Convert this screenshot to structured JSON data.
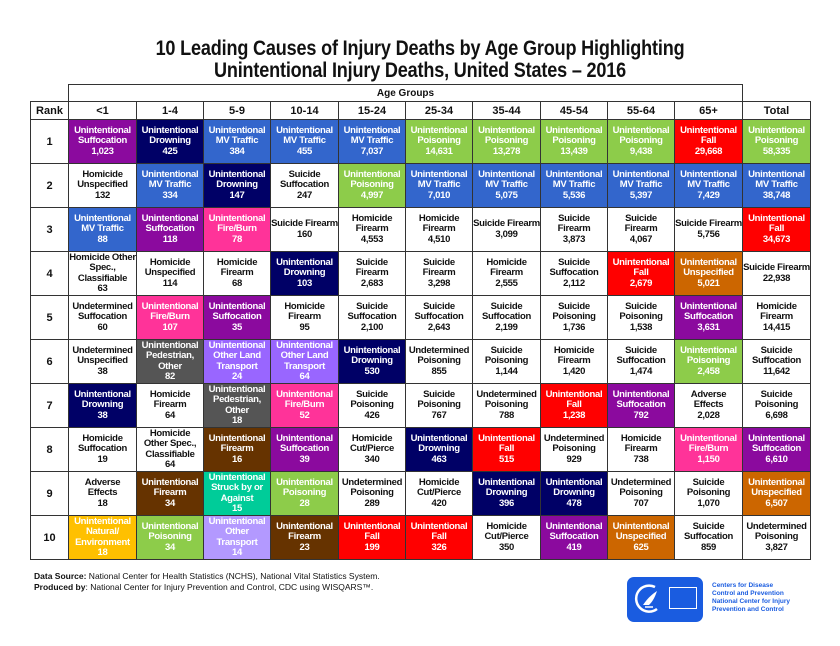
{
  "title": {
    "line1": "10 Leading Causes of Injury Deaths by Age Group Highlighting",
    "line2": "Unintentional Injury Deaths, United States – 2016"
  },
  "header": {
    "age_groups_label": "Age Groups",
    "rank_label": "Rank",
    "columns": [
      "<1",
      "1-4",
      "5-9",
      "10-14",
      "15-24",
      "25-34",
      "35-44",
      "45-54",
      "55-64",
      "65+",
      "Total"
    ]
  },
  "colors": {
    "suffocation": "#8b0a9e",
    "drowning": "#000066",
    "mv_traffic": "#3366cc",
    "poisoning": "#8dcc4a",
    "fall": "#ff0000",
    "fire_burn": "#ff3399",
    "pedestrian_other": "#555555",
    "other_land_transport": "#9966ff",
    "firearm": "#663300",
    "unspecified": "#cc6600",
    "struck_by": "#00cc99",
    "natural_environment": "#ffc000",
    "other_transport": "#b399ff",
    "white": "#ffffff"
  },
  "chart_data": {
    "type": "table",
    "title": "10 Leading Causes of Injury Deaths by Age Group Highlighting Unintentional Injury Deaths, United States – 2016",
    "columns": [
      "Rank",
      "<1",
      "1-4",
      "5-9",
      "10-14",
      "15-24",
      "25-34",
      "35-44",
      "45-54",
      "55-64",
      "65+",
      "Total"
    ],
    "rows": [
      {
        "rank": "1",
        "cells": [
          {
            "cause": "Unintentional Suffocation",
            "value": "1,023",
            "color": "suffocation"
          },
          {
            "cause": "Unintentional Drowning",
            "value": "425",
            "color": "drowning"
          },
          {
            "cause": "Unintentional MV Traffic",
            "value": "384",
            "color": "mv_traffic"
          },
          {
            "cause": "Unintentional MV Traffic",
            "value": "455",
            "color": "mv_traffic"
          },
          {
            "cause": "Unintentional MV Traffic",
            "value": "7,037",
            "color": "mv_traffic"
          },
          {
            "cause": "Unintentional Poisoning",
            "value": "14,631",
            "color": "poisoning"
          },
          {
            "cause": "Unintentional Poisoning",
            "value": "13,278",
            "color": "poisoning"
          },
          {
            "cause": "Unintentional Poisoning",
            "value": "13,439",
            "color": "poisoning"
          },
          {
            "cause": "Unintentional Poisoning",
            "value": "9,438",
            "color": "poisoning"
          },
          {
            "cause": "Unintentional Fall",
            "value": "29,668",
            "color": "fall"
          },
          {
            "cause": "Unintentional Poisoning",
            "value": "58,335",
            "color": "poisoning"
          }
        ]
      },
      {
        "rank": "2",
        "cells": [
          {
            "cause": "Homicide Unspecified",
            "value": "132",
            "color": "white"
          },
          {
            "cause": "Unintentional MV Traffic",
            "value": "334",
            "color": "mv_traffic"
          },
          {
            "cause": "Unintentional Drowning",
            "value": "147",
            "color": "drowning"
          },
          {
            "cause": "Suicide Suffocation",
            "value": "247",
            "color": "white"
          },
          {
            "cause": "Unintentional Poisoning",
            "value": "4,997",
            "color": "poisoning"
          },
          {
            "cause": "Unintentional MV Traffic",
            "value": "7,010",
            "color": "mv_traffic"
          },
          {
            "cause": "Unintentional MV Traffic",
            "value": "5,075",
            "color": "mv_traffic"
          },
          {
            "cause": "Unintentional MV Traffic",
            "value": "5,536",
            "color": "mv_traffic"
          },
          {
            "cause": "Unintentional MV Traffic",
            "value": "5,397",
            "color": "mv_traffic"
          },
          {
            "cause": "Unintentional MV Traffic",
            "value": "7,429",
            "color": "mv_traffic"
          },
          {
            "cause": "Unintentional MV Traffic",
            "value": "38,748",
            "color": "mv_traffic"
          }
        ]
      },
      {
        "rank": "3",
        "cells": [
          {
            "cause": "Unintentional MV Traffic",
            "value": "88",
            "color": "mv_traffic"
          },
          {
            "cause": "Unintentional Suffocation",
            "value": "118",
            "color": "suffocation"
          },
          {
            "cause": "Unintentional Fire/Burn",
            "value": "78",
            "color": "fire_burn"
          },
          {
            "cause": "Suicide Firearm",
            "value": "160",
            "color": "white"
          },
          {
            "cause": "Homicide Firearm",
            "value": "4,553",
            "color": "white"
          },
          {
            "cause": "Homicide Firearm",
            "value": "4,510",
            "color": "white"
          },
          {
            "cause": "Suicide Firearm",
            "value": "3,099",
            "color": "white"
          },
          {
            "cause": "Suicide Firearm",
            "value": "3,873",
            "color": "white"
          },
          {
            "cause": "Suicide Firearm",
            "value": "4,067",
            "color": "white"
          },
          {
            "cause": "Suicide Firearm",
            "value": "5,756",
            "color": "white"
          },
          {
            "cause": "Unintentional Fall",
            "value": "34,673",
            "color": "fall"
          }
        ]
      },
      {
        "rank": "4",
        "cells": [
          {
            "cause": "Homicide Other Spec., Classifiable",
            "value": "63",
            "color": "white"
          },
          {
            "cause": "Homicide Unspecified",
            "value": "114",
            "color": "white"
          },
          {
            "cause": "Homicide Firearm",
            "value": "68",
            "color": "white"
          },
          {
            "cause": "Unintentional Drowning",
            "value": "103",
            "color": "drowning"
          },
          {
            "cause": "Suicide Firearm",
            "value": "2,683",
            "color": "white"
          },
          {
            "cause": "Suicide Firearm",
            "value": "3,298",
            "color": "white"
          },
          {
            "cause": "Homicide Firearm",
            "value": "2,555",
            "color": "white"
          },
          {
            "cause": "Suicide Suffocation",
            "value": "2,112",
            "color": "white"
          },
          {
            "cause": "Unintentional Fall",
            "value": "2,679",
            "color": "fall"
          },
          {
            "cause": "Unintentional Unspecified",
            "value": "5,021",
            "color": "unspecified"
          },
          {
            "cause": "Suicide Firearm",
            "value": "22,938",
            "color": "white"
          }
        ]
      },
      {
        "rank": "5",
        "cells": [
          {
            "cause": "Undetermined Suffocation",
            "value": "60",
            "color": "white"
          },
          {
            "cause": "Unintentional Fire/Burn",
            "value": "107",
            "color": "fire_burn"
          },
          {
            "cause": "Unintentional Suffocation",
            "value": "35",
            "color": "suffocation"
          },
          {
            "cause": "Homicide Firearm",
            "value": "95",
            "color": "white"
          },
          {
            "cause": "Suicide Suffocation",
            "value": "2,100",
            "color": "white"
          },
          {
            "cause": "Suicide Suffocation",
            "value": "2,643",
            "color": "white"
          },
          {
            "cause": "Suicide Suffocation",
            "value": "2,199",
            "color": "white"
          },
          {
            "cause": "Suicide Poisoning",
            "value": "1,736",
            "color": "white"
          },
          {
            "cause": "Suicide Poisoning",
            "value": "1,538",
            "color": "white"
          },
          {
            "cause": "Unintentional Suffocation",
            "value": "3,631",
            "color": "suffocation"
          },
          {
            "cause": "Homicide Firearm",
            "value": "14,415",
            "color": "white"
          }
        ]
      },
      {
        "rank": "6",
        "cells": [
          {
            "cause": "Undetermined Unspecified",
            "value": "38",
            "color": "white"
          },
          {
            "cause": "Unintentional Pedestrian, Other",
            "value": "82",
            "color": "pedestrian_other"
          },
          {
            "cause": "Unintentional Other Land Transport",
            "value": "24",
            "color": "other_land_transport"
          },
          {
            "cause": "Unintentional Other Land Transport",
            "value": "64",
            "color": "other_land_transport"
          },
          {
            "cause": "Unintentional Drowning",
            "value": "530",
            "color": "drowning"
          },
          {
            "cause": "Undetermined Poisoning",
            "value": "855",
            "color": "white"
          },
          {
            "cause": "Suicide Poisoning",
            "value": "1,144",
            "color": "white"
          },
          {
            "cause": "Homicide Firearm",
            "value": "1,420",
            "color": "white"
          },
          {
            "cause": "Suicide Suffocation",
            "value": "1,474",
            "color": "white"
          },
          {
            "cause": "Unintentional Poisoning",
            "value": "2,458",
            "color": "poisoning"
          },
          {
            "cause": "Suicide Suffocation",
            "value": "11,642",
            "color": "white"
          }
        ]
      },
      {
        "rank": "7",
        "cells": [
          {
            "cause": "Unintentional Drowning",
            "value": "38",
            "color": "drowning"
          },
          {
            "cause": "Homicide Firearm",
            "value": "64",
            "color": "white"
          },
          {
            "cause": "Unintentional Pedestrian, Other",
            "value": "18",
            "color": "pedestrian_other"
          },
          {
            "cause": "Unintentional Fire/Burn",
            "value": "52",
            "color": "fire_burn"
          },
          {
            "cause": "Suicide Poisoning",
            "value": "426",
            "color": "white"
          },
          {
            "cause": "Suicide Poisoning",
            "value": "767",
            "color": "white"
          },
          {
            "cause": "Undetermined Poisoning",
            "value": "788",
            "color": "white"
          },
          {
            "cause": "Unintentional Fall",
            "value": "1,238",
            "color": "fall"
          },
          {
            "cause": "Unintentional Suffocation",
            "value": "792",
            "color": "suffocation"
          },
          {
            "cause": "Adverse Effects",
            "value": "2,028",
            "color": "white"
          },
          {
            "cause": "Suicide Poisoning",
            "value": "6,698",
            "color": "white"
          }
        ]
      },
      {
        "rank": "8",
        "cells": [
          {
            "cause": "Homicide Suffocation",
            "value": "19",
            "color": "white"
          },
          {
            "cause": "Homicide Other Spec., Classifiable",
            "value": "64",
            "color": "white"
          },
          {
            "cause": "Unintentional Firearm",
            "value": "16",
            "color": "firearm"
          },
          {
            "cause": "Unintentional Suffocation",
            "value": "39",
            "color": "suffocation"
          },
          {
            "cause": "Homicide Cut/Pierce",
            "value": "340",
            "color": "white"
          },
          {
            "cause": "Unintentional Drowning",
            "value": "463",
            "color": "drowning"
          },
          {
            "cause": "Unintentional Fall",
            "value": "515",
            "color": "fall"
          },
          {
            "cause": "Undetermined Poisoning",
            "value": "929",
            "color": "white"
          },
          {
            "cause": "Homicide Firearm",
            "value": "738",
            "color": "white"
          },
          {
            "cause": "Unintentional Fire/Burn",
            "value": "1,150",
            "color": "fire_burn"
          },
          {
            "cause": "Unintentional Suffocation",
            "value": "6,610",
            "color": "suffocation"
          }
        ]
      },
      {
        "rank": "9",
        "cells": [
          {
            "cause": "Adverse Effects",
            "value": "18",
            "color": "white"
          },
          {
            "cause": "Unintentional Firearm",
            "value": "34",
            "color": "firearm"
          },
          {
            "cause": "Unintentional Struck by or Against",
            "value": "15",
            "color": "struck_by"
          },
          {
            "cause": "Unintentional Poisoning",
            "value": "28",
            "color": "poisoning"
          },
          {
            "cause": "Undetermined Poisoning",
            "value": "289",
            "color": "white"
          },
          {
            "cause": "Homicide Cut/Pierce",
            "value": "420",
            "color": "white"
          },
          {
            "cause": "Unintentional Drowning",
            "value": "396",
            "color": "drowning"
          },
          {
            "cause": "Unintentional Drowning",
            "value": "478",
            "color": "drowning"
          },
          {
            "cause": "Undetermined Poisoning",
            "value": "707",
            "color": "white"
          },
          {
            "cause": "Suicide Poisoning",
            "value": "1,070",
            "color": "white"
          },
          {
            "cause": "Unintentional Unspecified",
            "value": "6,507",
            "color": "unspecified"
          }
        ]
      },
      {
        "rank": "10",
        "cells": [
          {
            "cause": "Unintentional Natural/ Environment",
            "value": "18",
            "color": "natural_environment"
          },
          {
            "cause": "Unintentional Poisoning",
            "value": "34",
            "color": "poisoning"
          },
          {
            "cause": "Unintentional Other Transport",
            "value": "14",
            "color": "other_transport"
          },
          {
            "cause": "Unintentional Firearm",
            "value": "23",
            "color": "firearm"
          },
          {
            "cause": "Unintentional Fall",
            "value": "199",
            "color": "fall"
          },
          {
            "cause": "Unintentional Fall",
            "value": "326",
            "color": "fall"
          },
          {
            "cause": "Homicide Cut/Pierce",
            "value": "350",
            "color": "white"
          },
          {
            "cause": "Unintentional Suffocation",
            "value": "419",
            "color": "suffocation"
          },
          {
            "cause": "Unintentional Unspecified",
            "value": "625",
            "color": "unspecified"
          },
          {
            "cause": "Suicide Suffocation",
            "value": "859",
            "color": "white"
          },
          {
            "cause": "Undetermined Poisoning",
            "value": "3,827",
            "color": "white"
          }
        ]
      }
    ]
  },
  "footer": {
    "data_source_label": "Data Source:",
    "data_source_text": " National Center for Health Statistics (NCHS), National Vital Statistics System.",
    "produced_by_label": "Produced by",
    "produced_by_text": ":  National Center for Injury Prevention and Control, CDC using WISQARS™."
  },
  "logo": {
    "line1": "Centers for Disease",
    "line2": "Control and Prevention",
    "line3": "National Center for Injury",
    "line4": "Prevention and Control"
  }
}
